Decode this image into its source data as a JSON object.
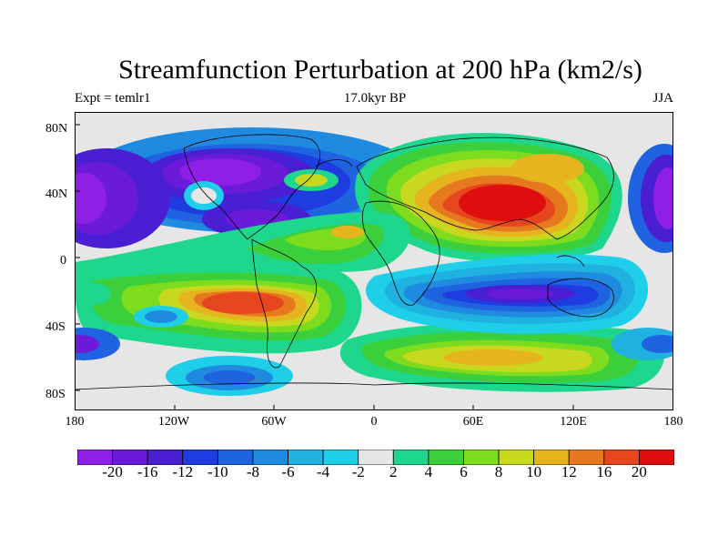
{
  "title": "Streamfunction Perturbation at 200 hPa (km2/s)",
  "left_subtitle": "Expt = temlr1",
  "center_subtitle": "17.0kyr BP",
  "right_subtitle": "JJA",
  "lat_labels": [
    "80N",
    "40N",
    "0",
    "40S",
    "80S"
  ],
  "lon_labels": [
    "180",
    "120W",
    "60W",
    "0",
    "60E",
    "120E",
    "180"
  ],
  "colorbar": {
    "labels": [
      "-20",
      "-16",
      "-12",
      "-10",
      "-8",
      "-6",
      "-4",
      "-2",
      "2",
      "4",
      "6",
      "8",
      "10",
      "12",
      "16",
      "20"
    ],
    "colors": [
      "#8f1fe6",
      "#6a1ad8",
      "#4a1fd4",
      "#1f3ce0",
      "#1f63e0",
      "#1f8be0",
      "#1fb2e0",
      "#1fcee8",
      "#e6e6e6",
      "#1ed68c",
      "#3ccf3c",
      "#7edc1e",
      "#c8d81e",
      "#e6b41e",
      "#e6781e",
      "#e6461e",
      "#e00f0f"
    ]
  }
}
